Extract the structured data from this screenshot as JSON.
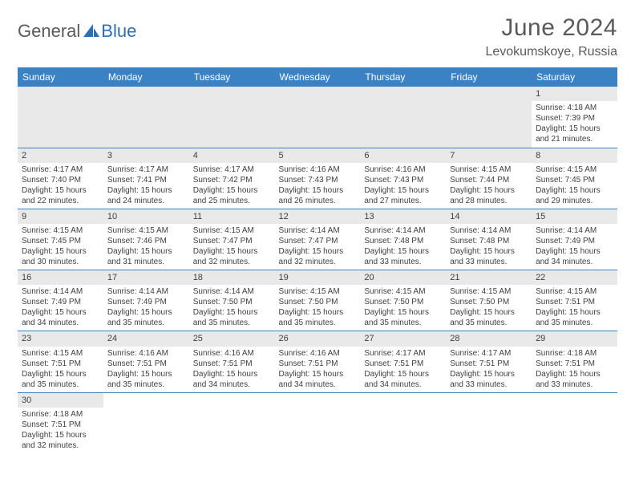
{
  "logo": {
    "text1": "General",
    "text2": "Blue"
  },
  "title": "June 2024",
  "location": "Levokumskoye, Russia",
  "colors": {
    "header_bg": "#3a82c4",
    "header_fg": "#ffffff",
    "cell_border": "#3a82c4",
    "daynum_bg": "#e9e9e9",
    "text": "#404040",
    "logo_gray": "#5a5a5a",
    "logo_blue": "#2f6fb0"
  },
  "weekdays": [
    "Sunday",
    "Monday",
    "Tuesday",
    "Wednesday",
    "Thursday",
    "Friday",
    "Saturday"
  ],
  "weeks": [
    [
      null,
      null,
      null,
      null,
      null,
      null,
      {
        "n": "1",
        "sunrise": "Sunrise: 4:18 AM",
        "sunset": "Sunset: 7:39 PM",
        "day1": "Daylight: 15 hours",
        "day2": "and 21 minutes."
      }
    ],
    [
      {
        "n": "2",
        "sunrise": "Sunrise: 4:17 AM",
        "sunset": "Sunset: 7:40 PM",
        "day1": "Daylight: 15 hours",
        "day2": "and 22 minutes."
      },
      {
        "n": "3",
        "sunrise": "Sunrise: 4:17 AM",
        "sunset": "Sunset: 7:41 PM",
        "day1": "Daylight: 15 hours",
        "day2": "and 24 minutes."
      },
      {
        "n": "4",
        "sunrise": "Sunrise: 4:17 AM",
        "sunset": "Sunset: 7:42 PM",
        "day1": "Daylight: 15 hours",
        "day2": "and 25 minutes."
      },
      {
        "n": "5",
        "sunrise": "Sunrise: 4:16 AM",
        "sunset": "Sunset: 7:43 PM",
        "day1": "Daylight: 15 hours",
        "day2": "and 26 minutes."
      },
      {
        "n": "6",
        "sunrise": "Sunrise: 4:16 AM",
        "sunset": "Sunset: 7:43 PM",
        "day1": "Daylight: 15 hours",
        "day2": "and 27 minutes."
      },
      {
        "n": "7",
        "sunrise": "Sunrise: 4:15 AM",
        "sunset": "Sunset: 7:44 PM",
        "day1": "Daylight: 15 hours",
        "day2": "and 28 minutes."
      },
      {
        "n": "8",
        "sunrise": "Sunrise: 4:15 AM",
        "sunset": "Sunset: 7:45 PM",
        "day1": "Daylight: 15 hours",
        "day2": "and 29 minutes."
      }
    ],
    [
      {
        "n": "9",
        "sunrise": "Sunrise: 4:15 AM",
        "sunset": "Sunset: 7:45 PM",
        "day1": "Daylight: 15 hours",
        "day2": "and 30 minutes."
      },
      {
        "n": "10",
        "sunrise": "Sunrise: 4:15 AM",
        "sunset": "Sunset: 7:46 PM",
        "day1": "Daylight: 15 hours",
        "day2": "and 31 minutes."
      },
      {
        "n": "11",
        "sunrise": "Sunrise: 4:15 AM",
        "sunset": "Sunset: 7:47 PM",
        "day1": "Daylight: 15 hours",
        "day2": "and 32 minutes."
      },
      {
        "n": "12",
        "sunrise": "Sunrise: 4:14 AM",
        "sunset": "Sunset: 7:47 PM",
        "day1": "Daylight: 15 hours",
        "day2": "and 32 minutes."
      },
      {
        "n": "13",
        "sunrise": "Sunrise: 4:14 AM",
        "sunset": "Sunset: 7:48 PM",
        "day1": "Daylight: 15 hours",
        "day2": "and 33 minutes."
      },
      {
        "n": "14",
        "sunrise": "Sunrise: 4:14 AM",
        "sunset": "Sunset: 7:48 PM",
        "day1": "Daylight: 15 hours",
        "day2": "and 33 minutes."
      },
      {
        "n": "15",
        "sunrise": "Sunrise: 4:14 AM",
        "sunset": "Sunset: 7:49 PM",
        "day1": "Daylight: 15 hours",
        "day2": "and 34 minutes."
      }
    ],
    [
      {
        "n": "16",
        "sunrise": "Sunrise: 4:14 AM",
        "sunset": "Sunset: 7:49 PM",
        "day1": "Daylight: 15 hours",
        "day2": "and 34 minutes."
      },
      {
        "n": "17",
        "sunrise": "Sunrise: 4:14 AM",
        "sunset": "Sunset: 7:49 PM",
        "day1": "Daylight: 15 hours",
        "day2": "and 35 minutes."
      },
      {
        "n": "18",
        "sunrise": "Sunrise: 4:14 AM",
        "sunset": "Sunset: 7:50 PM",
        "day1": "Daylight: 15 hours",
        "day2": "and 35 minutes."
      },
      {
        "n": "19",
        "sunrise": "Sunrise: 4:15 AM",
        "sunset": "Sunset: 7:50 PM",
        "day1": "Daylight: 15 hours",
        "day2": "and 35 minutes."
      },
      {
        "n": "20",
        "sunrise": "Sunrise: 4:15 AM",
        "sunset": "Sunset: 7:50 PM",
        "day1": "Daylight: 15 hours",
        "day2": "and 35 minutes."
      },
      {
        "n": "21",
        "sunrise": "Sunrise: 4:15 AM",
        "sunset": "Sunset: 7:50 PM",
        "day1": "Daylight: 15 hours",
        "day2": "and 35 minutes."
      },
      {
        "n": "22",
        "sunrise": "Sunrise: 4:15 AM",
        "sunset": "Sunset: 7:51 PM",
        "day1": "Daylight: 15 hours",
        "day2": "and 35 minutes."
      }
    ],
    [
      {
        "n": "23",
        "sunrise": "Sunrise: 4:15 AM",
        "sunset": "Sunset: 7:51 PM",
        "day1": "Daylight: 15 hours",
        "day2": "and 35 minutes."
      },
      {
        "n": "24",
        "sunrise": "Sunrise: 4:16 AM",
        "sunset": "Sunset: 7:51 PM",
        "day1": "Daylight: 15 hours",
        "day2": "and 35 minutes."
      },
      {
        "n": "25",
        "sunrise": "Sunrise: 4:16 AM",
        "sunset": "Sunset: 7:51 PM",
        "day1": "Daylight: 15 hours",
        "day2": "and 34 minutes."
      },
      {
        "n": "26",
        "sunrise": "Sunrise: 4:16 AM",
        "sunset": "Sunset: 7:51 PM",
        "day1": "Daylight: 15 hours",
        "day2": "and 34 minutes."
      },
      {
        "n": "27",
        "sunrise": "Sunrise: 4:17 AM",
        "sunset": "Sunset: 7:51 PM",
        "day1": "Daylight: 15 hours",
        "day2": "and 34 minutes."
      },
      {
        "n": "28",
        "sunrise": "Sunrise: 4:17 AM",
        "sunset": "Sunset: 7:51 PM",
        "day1": "Daylight: 15 hours",
        "day2": "and 33 minutes."
      },
      {
        "n": "29",
        "sunrise": "Sunrise: 4:18 AM",
        "sunset": "Sunset: 7:51 PM",
        "day1": "Daylight: 15 hours",
        "day2": "and 33 minutes."
      }
    ],
    [
      {
        "n": "30",
        "sunrise": "Sunrise: 4:18 AM",
        "sunset": "Sunset: 7:51 PM",
        "day1": "Daylight: 15 hours",
        "day2": "and 32 minutes."
      },
      null,
      null,
      null,
      null,
      null,
      null
    ]
  ]
}
